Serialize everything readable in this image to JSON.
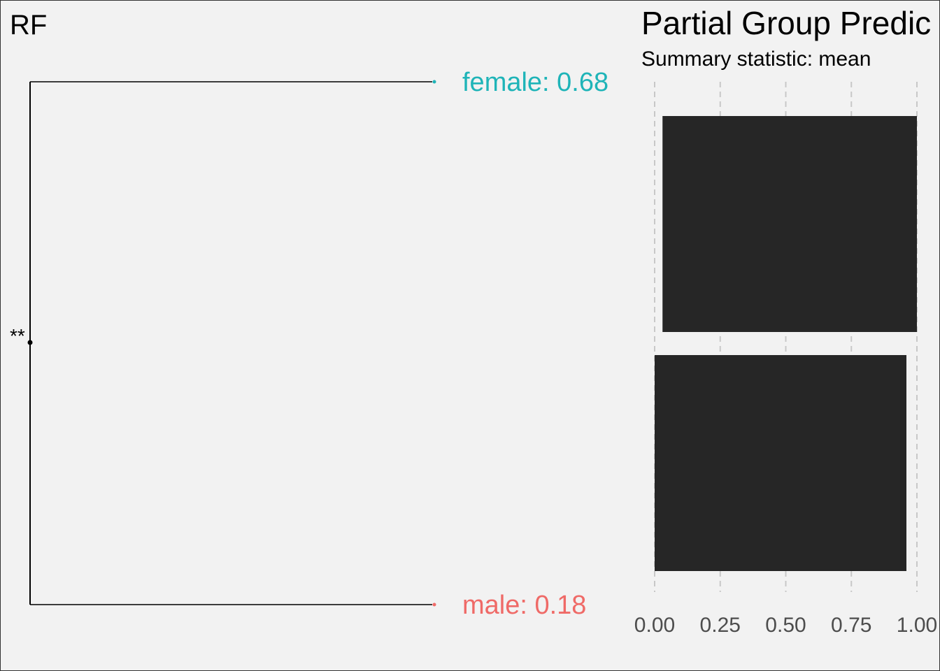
{
  "title_left": "RF",
  "title_right": "Partial Group Predic",
  "subtitle_right": "Summary statistic: mean",
  "colors": {
    "background": "#f2f2f2",
    "female": "#1fb4b8",
    "male": "#ef6a67",
    "bar": "#262626",
    "grid": "#c8c8c8",
    "tick_text": "#4d4d4d"
  },
  "chart_data": [
    {
      "type": "tree",
      "significance": "**",
      "leaves": [
        {
          "label": "female: 0.68",
          "group": "female",
          "value": 0.68
        },
        {
          "label": "male: 0.18",
          "group": "male",
          "value": 0.18
        }
      ]
    },
    {
      "type": "bar",
      "orientation": "horizontal",
      "title": "Partial Group Predic",
      "subtitle": "Summary statistic: mean",
      "categories": [
        "female",
        "male"
      ],
      "series": [
        {
          "start": [
            0.03,
            0.0
          ],
          "end": [
            1.0,
            0.96
          ]
        }
      ],
      "xlim": [
        0,
        1
      ],
      "x_ticks": [
        0,
        0.25,
        0.5,
        0.75,
        1.0
      ],
      "x_tick_labels": [
        "0.00",
        "0.25",
        "0.50",
        "0.75",
        "1.00"
      ],
      "grid": "vertical-dashed",
      "legend": "none"
    }
  ]
}
